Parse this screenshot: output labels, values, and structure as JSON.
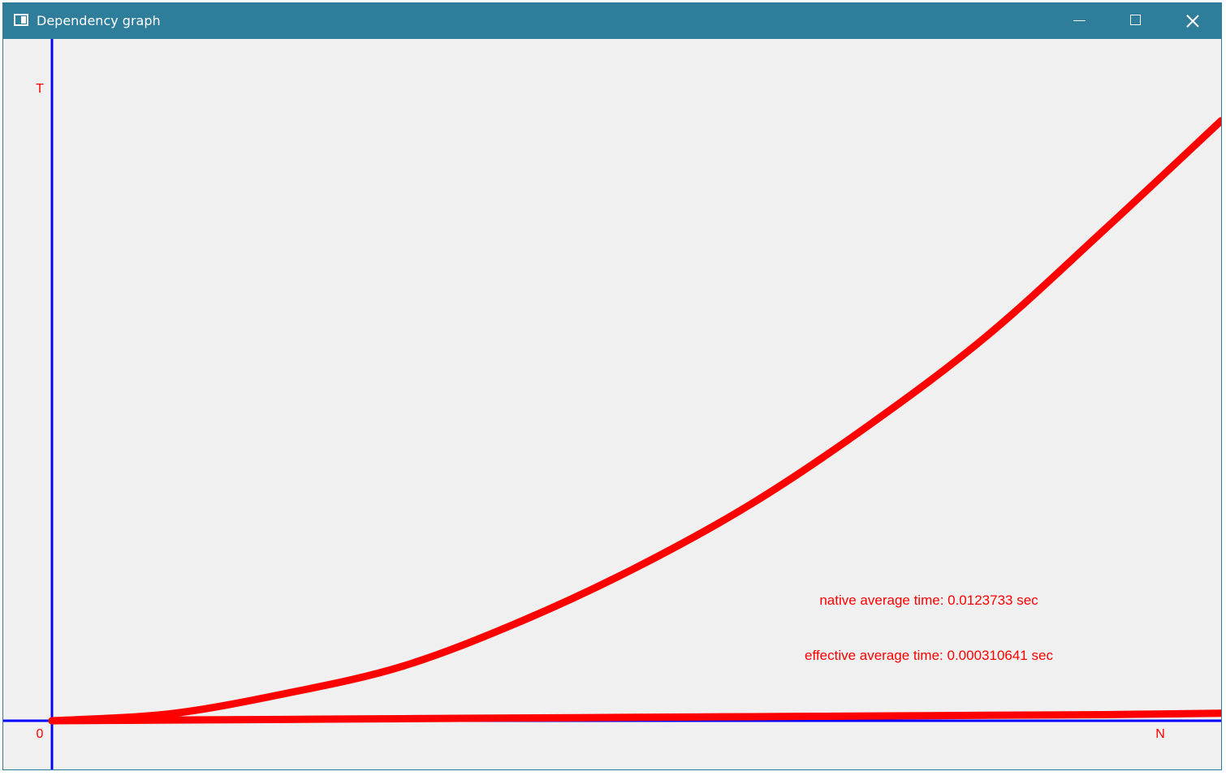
{
  "window": {
    "title": "Dependency graph",
    "buttons": {
      "minimize": "minimize-icon",
      "maximize": "maximize-icon",
      "close": "close-icon"
    }
  },
  "colors": {
    "titlebar": "#2e7d9a",
    "background": "#f0f0f0",
    "axis": "#0000ff",
    "series": "#ff0000"
  },
  "chart_data": {
    "type": "line",
    "title": "",
    "xlabel": "N",
    "ylabel": "T",
    "origin_label": "0",
    "xlim": [
      0,
      1
    ],
    "ylim": [
      0,
      1
    ],
    "grid": false,
    "series": [
      {
        "name": "native",
        "x": [
          0,
          0.1,
          0.2,
          0.3,
          0.4,
          0.5,
          0.6,
          0.7,
          0.8,
          0.9,
          1.0
        ],
        "values": [
          0,
          0.01,
          0.04,
          0.08,
          0.145,
          0.225,
          0.32,
          0.435,
          0.565,
          0.72,
          0.88
        ]
      },
      {
        "name": "effective",
        "x": [
          0,
          0.1,
          0.2,
          0.3,
          0.4,
          0.5,
          0.6,
          0.7,
          0.8,
          0.9,
          1.0
        ],
        "values": [
          0,
          0.001,
          0.002,
          0.003,
          0.004,
          0.005,
          0.006,
          0.007,
          0.008,
          0.009,
          0.011
        ]
      }
    ],
    "annotations": [
      "native average time: 0.0123733 sec",
      "effective average time: 0.000310641 sec"
    ]
  }
}
